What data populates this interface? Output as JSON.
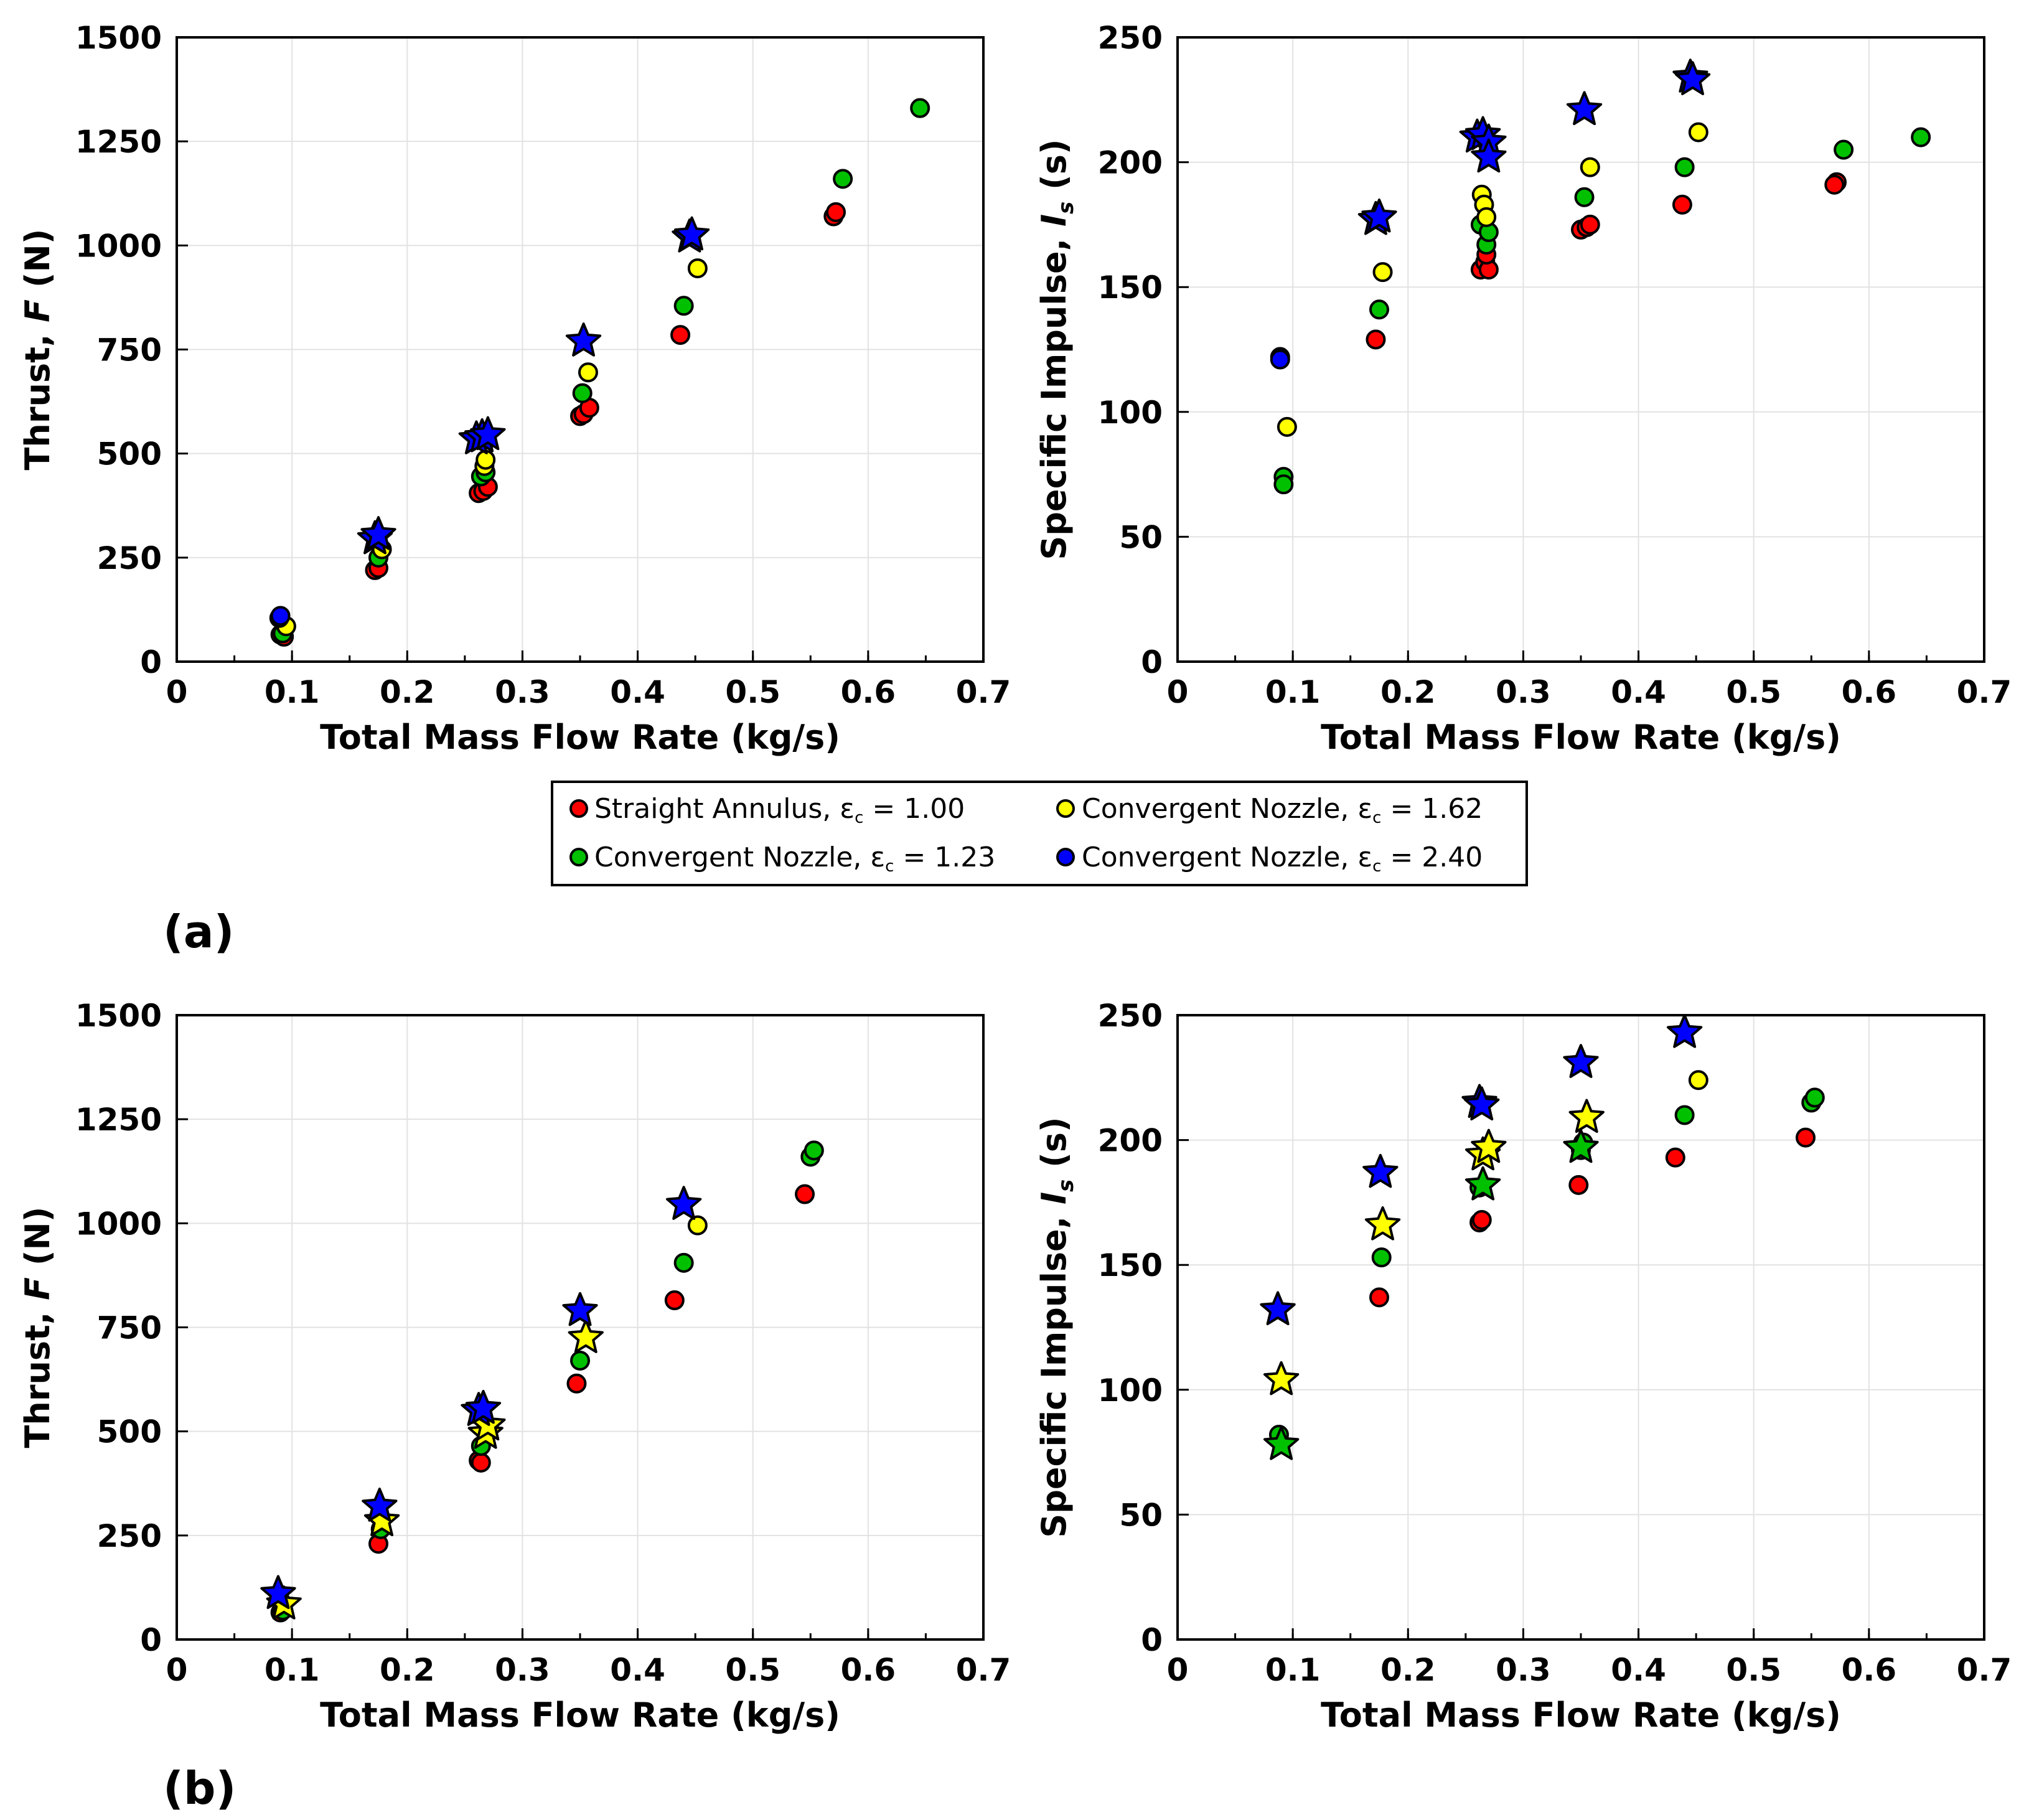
{
  "colors": {
    "straight": "#ff0000",
    "conv123": "#00c000",
    "conv162": "#ffff00",
    "conv240": "#0000ff",
    "grid": "#e2e2e2",
    "marker_edge": "#000000"
  },
  "panel_labels": {
    "a": "(a)",
    "b": "(b)"
  },
  "legend": {
    "items": [
      {
        "key": "straight",
        "text": "Straight Annulus, ε",
        "sub": "c",
        "tail": " = 1.00"
      },
      {
        "key": "conv162",
        "text": "Convergent Nozzle, ε",
        "sub": "c",
        "tail": " = 1.62"
      },
      {
        "key": "conv123",
        "text": "Convergent Nozzle, ε",
        "sub": "c",
        "tail": " = 1.23"
      },
      {
        "key": "conv240",
        "text": "Convergent Nozzle, ε",
        "sub": "c",
        "tail": " = 2.40"
      }
    ]
  },
  "chart_data": [
    {
      "id": "a-thrust",
      "type": "scatter",
      "xlabel": "Total Mass Flow Rate (kg/s)",
      "ylabel": {
        "pre": "Thrust, ",
        "it": "F",
        "post": " (N)"
      },
      "xlim": [
        0,
        0.7
      ],
      "ylim": [
        0,
        1500
      ],
      "xticks": [
        "0",
        "0.1",
        "0.2",
        "0.3",
        "0.4",
        "0.5",
        "0.6",
        "0.7"
      ],
      "yticks": [
        "0",
        "250",
        "500",
        "750",
        "1000",
        "1250",
        "1500"
      ],
      "xtick_vals": [
        0,
        0.1,
        0.2,
        0.3,
        0.4,
        0.5,
        0.6,
        0.7
      ],
      "ytick_vals": [
        0,
        250,
        500,
        750,
        1000,
        1250,
        1500
      ],
      "grid": true,
      "series": [
        {
          "name": "Straight Annulus",
          "color": "straight",
          "marker": "circle",
          "points": [
            [
              0.09,
              65
            ],
            [
              0.093,
              60
            ],
            [
              0.172,
              220
            ],
            [
              0.175,
              225
            ],
            [
              0.262,
              405
            ],
            [
              0.266,
              410
            ],
            [
              0.27,
              420
            ],
            [
              0.35,
              590
            ],
            [
              0.353,
              595
            ],
            [
              0.358,
              610
            ],
            [
              0.437,
              785
            ],
            [
              0.57,
              1070
            ],
            [
              0.572,
              1080
            ]
          ]
        },
        {
          "name": "Convergent Nozzle ε=1.23",
          "color": "conv123",
          "marker": "circle",
          "points": [
            [
              0.092,
              68
            ],
            [
              0.175,
              250
            ],
            [
              0.264,
              445
            ],
            [
              0.268,
              455
            ],
            [
              0.352,
              645
            ],
            [
              0.44,
              855
            ],
            [
              0.578,
              1160
            ],
            [
              0.645,
              1330
            ]
          ]
        },
        {
          "name": "Convergent Nozzle ε=1.62",
          "color": "conv162",
          "marker": "circle",
          "points": [
            [
              0.095,
              85
            ],
            [
              0.178,
              270
            ],
            [
              0.267,
              470
            ],
            [
              0.268,
              485
            ],
            [
              0.357,
              695
            ],
            [
              0.452,
              945
            ]
          ]
        },
        {
          "name": "Convergent Nozzle ε=2.40",
          "color": "conv240",
          "marker": "circle",
          "points": [
            [
              0.089,
              105
            ],
            [
              0.09,
              110
            ]
          ]
        },
        {
          "name": "Convergent Nozzle ε=2.40 (star)",
          "color": "conv240",
          "marker": "star",
          "points": [
            [
              0.172,
              295
            ],
            [
              0.175,
              305
            ],
            [
              0.26,
              535
            ],
            [
              0.265,
              540
            ],
            [
              0.27,
              545
            ],
            [
              0.353,
              770
            ],
            [
              0.445,
              1020
            ],
            [
              0.447,
              1025
            ]
          ]
        }
      ]
    },
    {
      "id": "a-isp",
      "type": "scatter",
      "xlabel": "Total Mass Flow Rate (kg/s)",
      "ylabel": {
        "pre": "Specific Impulse, ",
        "it": "I",
        "sub": "s",
        "post": " (s)"
      },
      "xlim": [
        0,
        0.7
      ],
      "ylim": [
        0,
        250
      ],
      "xticks": [
        "0",
        "0.1",
        "0.2",
        "0.3",
        "0.4",
        "0.5",
        "0.6",
        "0.7"
      ],
      "yticks": [
        "0",
        "50",
        "100",
        "150",
        "200",
        "250"
      ],
      "xtick_vals": [
        0,
        0.1,
        0.2,
        0.3,
        0.4,
        0.5,
        0.6,
        0.7
      ],
      "ytick_vals": [
        0,
        50,
        100,
        150,
        200,
        250
      ],
      "grid": true,
      "series": [
        {
          "name": "Straight Annulus",
          "color": "straight",
          "marker": "circle",
          "points": [
            [
              0.172,
              129
            ],
            [
              0.263,
              157
            ],
            [
              0.267,
              160
            ],
            [
              0.27,
              157
            ],
            [
              0.268,
              163
            ],
            [
              0.35,
              173
            ],
            [
              0.355,
              174
            ],
            [
              0.358,
              175
            ],
            [
              0.438,
              183
            ],
            [
              0.572,
              192
            ],
            [
              0.57,
              191
            ]
          ]
        },
        {
          "name": "Convergent Nozzle ε=1.23",
          "color": "conv123",
          "marker": "circle",
          "points": [
            [
              0.092,
              74
            ],
            [
              0.092,
              71
            ],
            [
              0.175,
              141
            ],
            [
              0.263,
              175
            ],
            [
              0.268,
              167
            ],
            [
              0.27,
              172
            ],
            [
              0.353,
              186
            ],
            [
              0.44,
              198
            ],
            [
              0.578,
              205
            ],
            [
              0.645,
              210
            ]
          ]
        },
        {
          "name": "Convergent Nozzle ε=1.62",
          "color": "conv162",
          "marker": "circle",
          "points": [
            [
              0.095,
              94
            ],
            [
              0.178,
              156
            ],
            [
              0.264,
              187
            ],
            [
              0.266,
              183
            ],
            [
              0.268,
              178
            ],
            [
              0.358,
              198
            ],
            [
              0.452,
              212
            ]
          ]
        },
        {
          "name": "Convergent Nozzle ε=2.40",
          "color": "conv240",
          "marker": "circle",
          "points": [
            [
              0.089,
              122
            ],
            [
              0.089,
              121
            ]
          ]
        },
        {
          "name": "Convergent Nozzle ε=2.40 (star)",
          "color": "conv240",
          "marker": "star",
          "points": [
            [
              0.172,
              177
            ],
            [
              0.175,
              178
            ],
            [
              0.26,
              210
            ],
            [
              0.265,
              211
            ],
            [
              0.27,
              208
            ],
            [
              0.27,
              202
            ],
            [
              0.353,
              221
            ],
            [
              0.445,
              234
            ],
            [
              0.447,
              233
            ]
          ]
        }
      ]
    },
    {
      "id": "b-thrust",
      "type": "scatter",
      "xlabel": "Total Mass Flow Rate (kg/s)",
      "ylabel": {
        "pre": "Thrust, ",
        "it": "F",
        "post": " (N)"
      },
      "xlim": [
        0,
        0.7
      ],
      "ylim": [
        0,
        1500
      ],
      "xticks": [
        "0",
        "0.1",
        "0.2",
        "0.3",
        "0.4",
        "0.5",
        "0.6",
        "0.7"
      ],
      "yticks": [
        "0",
        "250",
        "500",
        "750",
        "1000",
        "1250",
        "1500"
      ],
      "xtick_vals": [
        0,
        0.1,
        0.2,
        0.3,
        0.4,
        0.5,
        0.6,
        0.7
      ],
      "ytick_vals": [
        0,
        250,
        500,
        750,
        1000,
        1250,
        1500
      ],
      "grid": true,
      "series": [
        {
          "name": "Straight Annulus",
          "color": "straight",
          "marker": "circle",
          "points": [
            [
              0.09,
              65
            ],
            [
              0.175,
              230
            ],
            [
              0.262,
              430
            ],
            [
              0.264,
              425
            ],
            [
              0.347,
              615
            ],
            [
              0.432,
              815
            ],
            [
              0.545,
              1070
            ]
          ]
        },
        {
          "name": "Convergent Nozzle ε=1.23",
          "color": "conv123",
          "marker": "circle",
          "points": [
            [
              0.092,
              70
            ],
            [
              0.177,
              265
            ],
            [
              0.264,
              465
            ],
            [
              0.35,
              670
            ],
            [
              0.44,
              905
            ],
            [
              0.55,
              1160
            ],
            [
              0.553,
              1175
            ]
          ]
        },
        {
          "name": "Convergent Nozzle ε=1.62",
          "color": "conv162",
          "marker": "circle",
          "points": [
            [
              0.452,
              995
            ]
          ]
        },
        {
          "name": "Convergent Nozzle ε=1.62 (star)",
          "color": "conv162",
          "marker": "star",
          "points": [
            [
              0.093,
              85
            ],
            [
              0.178,
              285
            ],
            [
              0.268,
              495
            ],
            [
              0.27,
              515
            ],
            [
              0.355,
              725
            ]
          ]
        },
        {
          "name": "Convergent Nozzle ε=2.40 (star)",
          "color": "conv240",
          "marker": "star",
          "points": [
            [
              0.088,
              110
            ],
            [
              0.176,
              320
            ],
            [
              0.262,
              550
            ],
            [
              0.266,
              555
            ],
            [
              0.35,
              790
            ],
            [
              0.44,
              1045
            ]
          ]
        }
      ]
    },
    {
      "id": "b-isp",
      "type": "scatter",
      "xlabel": "Total Mass Flow Rate (kg/s)",
      "ylabel": {
        "pre": "Specific Impulse, ",
        "it": "I",
        "sub": "s",
        "post": " (s)"
      },
      "xlim": [
        0,
        0.7
      ],
      "ylim": [
        0,
        250
      ],
      "xticks": [
        "0",
        "0.1",
        "0.2",
        "0.3",
        "0.4",
        "0.5",
        "0.6",
        "0.7"
      ],
      "yticks": [
        "0",
        "50",
        "100",
        "150",
        "200",
        "250"
      ],
      "xtick_vals": [
        0,
        0.1,
        0.2,
        0.3,
        0.4,
        0.5,
        0.6,
        0.7
      ],
      "ytick_vals": [
        0,
        50,
        100,
        150,
        200,
        250
      ],
      "grid": true,
      "series": [
        {
          "name": "Straight Annulus",
          "color": "straight",
          "marker": "circle",
          "points": [
            [
              0.175,
              137
            ],
            [
              0.262,
              167
            ],
            [
              0.264,
              168
            ],
            [
              0.348,
              182
            ],
            [
              0.432,
              193
            ],
            [
              0.545,
              201
            ]
          ]
        },
        {
          "name": "Convergent Nozzle ε=1.23",
          "color": "conv123",
          "marker": "circle",
          "points": [
            [
              0.088,
              82
            ],
            [
              0.177,
              153
            ],
            [
              0.262,
              181
            ],
            [
              0.35,
              196
            ],
            [
              0.352,
              199
            ],
            [
              0.44,
              210
            ],
            [
              0.55,
              215
            ],
            [
              0.553,
              217
            ]
          ]
        },
        {
          "name": "Convergent Nozzle ε=1.23 (star)",
          "color": "conv123",
          "marker": "star",
          "points": [
            [
              0.09,
              78
            ],
            [
              0.265,
              182
            ],
            [
              0.35,
              197
            ]
          ]
        },
        {
          "name": "Convergent Nozzle ε=1.62",
          "color": "conv162",
          "marker": "circle",
          "points": [
            [
              0.452,
              224
            ]
          ]
        },
        {
          "name": "Convergent Nozzle ε=1.62 (star)",
          "color": "conv162",
          "marker": "star",
          "points": [
            [
              0.09,
              104
            ],
            [
              0.178,
              166
            ],
            [
              0.265,
              194
            ],
            [
              0.27,
              197
            ],
            [
              0.355,
              209
            ]
          ]
        },
        {
          "name": "Convergent Nozzle ε=2.40 (star)",
          "color": "conv240",
          "marker": "star",
          "points": [
            [
              0.087,
              132
            ],
            [
              0.176,
              187
            ],
            [
              0.262,
              215
            ],
            [
              0.264,
              214
            ],
            [
              0.35,
              231
            ],
            [
              0.44,
              243
            ]
          ]
        }
      ]
    }
  ]
}
